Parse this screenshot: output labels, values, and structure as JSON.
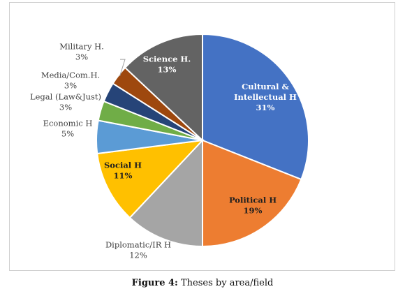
{
  "chart_data": {
    "type": "pie",
    "title": "",
    "start_angle_deg": 0,
    "slices": [
      {
        "lines": [
          "Cultural &",
          "Intellectual H",
          "31%"
        ],
        "value": 31,
        "color": "#4472C4",
        "label_pos": "inside",
        "label_color": "light"
      },
      {
        "lines": [
          "Political H",
          "19%"
        ],
        "value": 19,
        "color": "#ED7D31",
        "label_pos": "inside",
        "label_color": "dark"
      },
      {
        "lines": [
          "Diplomatic/IR H",
          "12%"
        ],
        "value": 12,
        "color": "#A5A5A5",
        "label_pos": "outside",
        "label_color": "dark"
      },
      {
        "lines": [
          "Social H",
          "11%"
        ],
        "value": 11,
        "color": "#FFC000",
        "label_pos": "inside",
        "label_color": "dark"
      },
      {
        "lines": [
          "Economic H",
          "5%"
        ],
        "value": 5,
        "color": "#5B9BD5",
        "label_pos": "outside",
        "label_color": "dark"
      },
      {
        "lines": [
          "Legal (Law&Just)",
          "3%"
        ],
        "value": 3,
        "color": "#70AD47",
        "label_pos": "outside",
        "label_color": "dark"
      },
      {
        "lines": [
          "Media/Com.H.",
          "3%"
        ],
        "value": 3,
        "color": "#264478",
        "label_pos": "outside",
        "label_color": "dark"
      },
      {
        "lines": [
          "Military H.",
          "3%"
        ],
        "value": 3,
        "color": "#9E480E",
        "label_pos": "outside",
        "label_color": "dark"
      },
      {
        "lines": [
          "Science H.",
          "13%"
        ],
        "value": 13,
        "color": "#636363",
        "label_pos": "inside",
        "label_color": "light"
      }
    ]
  },
  "caption": {
    "figure_number": "Figure 4:",
    "text": " Theses by area/field"
  }
}
